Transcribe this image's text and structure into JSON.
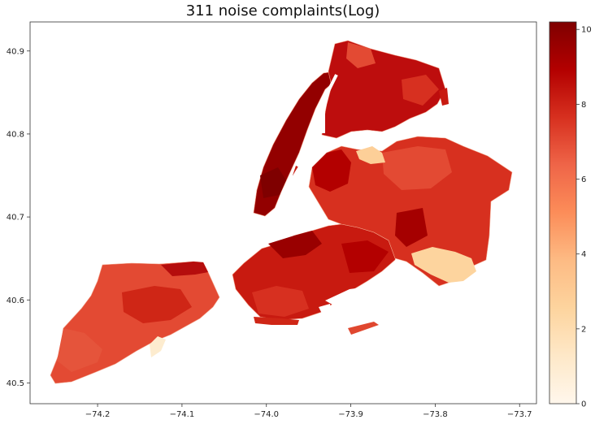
{
  "figure": {
    "title": "311 noise complaints(Log)"
  },
  "map": {
    "type": "choropleth",
    "region": "New York City ZIP code areas",
    "x_ticks": [
      "−74.2",
      "−74.1",
      "−74.0",
      "−73.9",
      "−73.8",
      "−73.7"
    ],
    "y_ticks": [
      "40.9",
      "40.8",
      "40.7",
      "40.6",
      "40.5"
    ],
    "xlim": [
      -74.28,
      -73.68
    ],
    "ylim": [
      40.475,
      40.935
    ],
    "x_tick_values": [
      -74.2,
      -74.1,
      -74.0,
      -73.9,
      -73.8,
      -73.7
    ],
    "y_tick_values": [
      40.9,
      40.8,
      40.7,
      40.6,
      40.5
    ]
  },
  "colorbar": {
    "colormap": "OrRd",
    "min": 0,
    "max": 10.2,
    "tick_values": [
      0,
      2,
      4,
      6,
      8,
      10
    ],
    "ticks": [
      "0",
      "2",
      "4",
      "6",
      "8",
      "10"
    ],
    "stops": [
      "#fff7ec",
      "#fee8c8",
      "#fdd49e",
      "#fdbb84",
      "#fc8d59",
      "#ef6548",
      "#d7301f",
      "#b30000",
      "#7f0000"
    ]
  },
  "regions": [
    {
      "area": "Staten Island",
      "approx_log_value": 6.5,
      "color": "#e34a33"
    },
    {
      "area": "Staten Island south shore",
      "approx_log_value": 0.8,
      "color": "#fdeccf"
    },
    {
      "area": "Manhattan",
      "approx_log_value": 9.5,
      "color": "#930000"
    },
    {
      "area": "Bronx",
      "approx_log_value": 8.5,
      "color": "#bd0d0d"
    },
    {
      "area": "Brooklyn",
      "approx_log_value": 8.0,
      "color": "#c81a10"
    },
    {
      "area": "Queens",
      "approx_log_value": 7.2,
      "color": "#d7301f"
    },
    {
      "area": "JFK Airport",
      "approx_log_value": 3.3,
      "color": "#fdd49e"
    },
    {
      "area": "LaGuardia Airport",
      "approx_log_value": 3.5,
      "color": "#fdcf98"
    }
  ]
}
